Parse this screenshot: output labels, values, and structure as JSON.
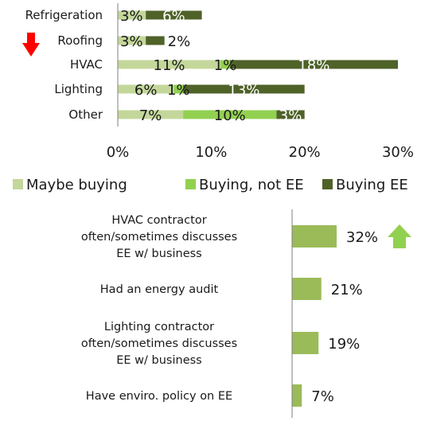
{
  "colors": {
    "maybe": "#c4d79b",
    "buying_not_ee": "#92d050",
    "buying_ee": "#4f6228",
    "bottom_bar": "#9bbb59",
    "axis": "#7f7f7f",
    "up_arrow": "#92d050",
    "down_arrow": "#ff0000"
  },
  "chart_data": [
    {
      "type": "bar",
      "orientation": "horizontal",
      "stacked": true,
      "categories": [
        "Refrigeration",
        "Roofing",
        "HVAC",
        "Lighting",
        "Other"
      ],
      "series": [
        {
          "name": "Maybe buying",
          "values": [
            3,
            3,
            11,
            6,
            7
          ],
          "labels": [
            "3%",
            "3%",
            "11%",
            "6%",
            "7%"
          ]
        },
        {
          "name": "Buying, not EE",
          "values": [
            0,
            0,
            1,
            1,
            10
          ],
          "labels": [
            "",
            "",
            "1%",
            "1%",
            "10%"
          ]
        },
        {
          "name": "Buying EE",
          "values": [
            6,
            2,
            18,
            13,
            3
          ],
          "labels": [
            "6%",
            "2%",
            "18%",
            "13%",
            "3%"
          ]
        }
      ],
      "xlim": [
        0,
        30
      ],
      "xticks": [
        "0%",
        "10%",
        "20%",
        "30%"
      ],
      "xtick_values": [
        0,
        10,
        20,
        30
      ],
      "legend_position": "bottom",
      "grid": false,
      "annotations": [
        {
          "category": "Roofing",
          "marker": "down-arrow"
        }
      ]
    },
    {
      "type": "bar",
      "orientation": "horizontal",
      "categories": [
        [
          "HVAC contractor",
          "often/sometimes discusses",
          "EE w/ business"
        ],
        [
          "Had an energy audit"
        ],
        [
          "Lighting contractor",
          "often/sometimes discusses",
          "EE w/ business"
        ],
        [
          "Have enviro. policy on EE"
        ]
      ],
      "values": [
        32,
        21,
        19,
        7
      ],
      "labels": [
        "32%",
        "21%",
        "19%",
        "7%"
      ],
      "xlim": [
        0,
        100
      ],
      "grid": false,
      "annotations": [
        {
          "index": 0,
          "marker": "up-arrow"
        }
      ]
    }
  ]
}
